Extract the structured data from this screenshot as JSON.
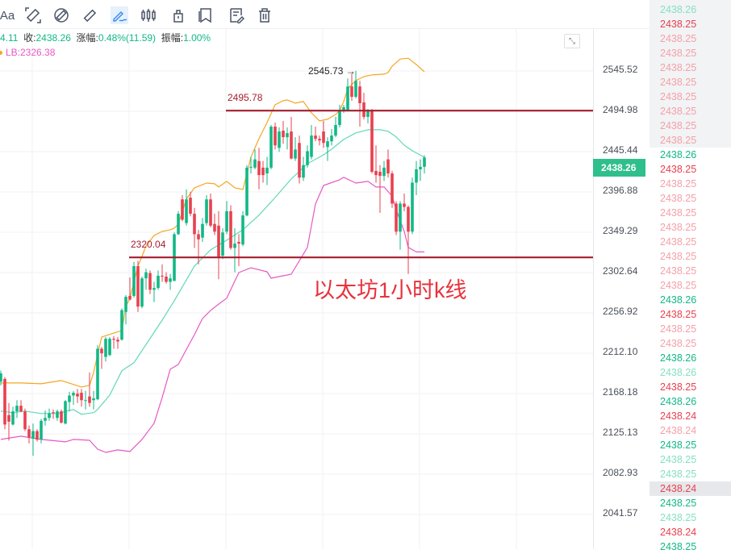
{
  "toolbar": {
    "items": [
      {
        "name": "text-tool-icon",
        "label": "Aa"
      },
      {
        "name": "ruler-icon"
      },
      {
        "name": "circle-ruler-icon"
      },
      {
        "name": "measure-icon"
      },
      {
        "name": "pen-brush-icon",
        "active": true
      },
      {
        "name": "candlestick-icon"
      },
      {
        "name": "lock-icon"
      },
      {
        "name": "bookmark-icon"
      },
      {
        "name": "edit-note-icon"
      },
      {
        "name": "trash-icon"
      }
    ]
  },
  "info": {
    "prev_value": "4.11",
    "close_label": "收:",
    "close": "2438.26",
    "change_label": "涨幅:",
    "change": "0.48%(11.59)",
    "amplitude_label": "振幅:",
    "amplitude": "1.00%",
    "lb": "LB:2326.38"
  },
  "colors": {
    "up": "#12b886",
    "down": "#e8414f",
    "upper_band": "#f5a623",
    "mid_band": "#5fd9b8",
    "lower_band": "#e659c4",
    "hline": "#a51d2d",
    "annotation": "#e8323c",
    "price_tag": "#2fbf8c"
  },
  "price_tag": "2438.26",
  "order_list": [
    {
      "v": "2438.26",
      "c": "lg"
    },
    {
      "v": "2438.25",
      "c": "r"
    },
    {
      "v": "2438.25",
      "c": "lr"
    },
    {
      "v": "2438.25",
      "c": "lr"
    },
    {
      "v": "2438.25",
      "c": "lr"
    },
    {
      "v": "2438.25",
      "c": "lr"
    },
    {
      "v": "2438.25",
      "c": "lr"
    },
    {
      "v": "2438.25",
      "c": "lr"
    },
    {
      "v": "2438.25",
      "c": "lr"
    },
    {
      "v": "2438.25",
      "c": "lr"
    },
    {
      "v": "2438.26",
      "c": "g"
    },
    {
      "v": "2438.25",
      "c": "r"
    },
    {
      "v": "2438.25",
      "c": "lr"
    },
    {
      "v": "2438.25",
      "c": "lr"
    },
    {
      "v": "2438.25",
      "c": "lr"
    },
    {
      "v": "2438.25",
      "c": "lr"
    },
    {
      "v": "2438.25",
      "c": "lr"
    },
    {
      "v": "2438.25",
      "c": "lr"
    },
    {
      "v": "2438.25",
      "c": "lr"
    },
    {
      "v": "2438.25",
      "c": "lr"
    },
    {
      "v": "2438.26",
      "c": "g"
    },
    {
      "v": "2438.25",
      "c": "r"
    },
    {
      "v": "2438.25",
      "c": "lr"
    },
    {
      "v": "2438.25",
      "c": "lr"
    },
    {
      "v": "2438.26",
      "c": "g"
    },
    {
      "v": "2438.26",
      "c": "lg"
    },
    {
      "v": "2438.25",
      "c": "r"
    },
    {
      "v": "2438.26",
      "c": "g"
    },
    {
      "v": "2438.24",
      "c": "r"
    },
    {
      "v": "2438.24",
      "c": "lr"
    },
    {
      "v": "2438.25",
      "c": "g"
    },
    {
      "v": "2438.25",
      "c": "lg"
    },
    {
      "v": "2438.25",
      "c": "lg"
    },
    {
      "v": "2438.24",
      "c": "r",
      "highlight": true
    },
    {
      "v": "2438.25",
      "c": "g"
    },
    {
      "v": "2438.25",
      "c": "lg"
    },
    {
      "v": "2438.24",
      "c": "r"
    },
    {
      "v": "2438.25",
      "c": "g"
    }
  ],
  "chart_data": {
    "type": "candlestick",
    "title": "",
    "annotation": "以太坊1小时k线",
    "y_scale": "log",
    "ylim": [
      2000,
      2600
    ],
    "y_ticks": [
      "2545.52",
      "2494.98",
      "2445.44",
      "2396.88",
      "2349.29",
      "2302.64",
      "2256.92",
      "2212.10",
      "2168.18",
      "2125.13",
      "2082.93",
      "2041.57"
    ],
    "grid": true,
    "high_marker": "2545.73",
    "hlines": [
      {
        "value": 2495.78,
        "label": "2495.78",
        "from_index": 56
      },
      {
        "value": 2320.04,
        "label": "2320.04",
        "from_index": 32
      }
    ],
    "ohlc": [
      [
        2181,
        2193,
        2177,
        2190
      ],
      [
        2184,
        2186,
        2130,
        2135
      ],
      [
        2145,
        2158,
        2118,
        2138
      ],
      [
        2135,
        2154,
        2134,
        2149
      ],
      [
        2149,
        2161,
        2142,
        2155
      ],
      [
        2155,
        2161,
        2148,
        2149
      ],
      [
        2149,
        2152,
        2128,
        2130
      ],
      [
        2130,
        2134,
        2115,
        2121
      ],
      [
        2120,
        2136,
        2102,
        2128
      ],
      [
        2128,
        2130,
        2117,
        2119
      ],
      [
        2119,
        2141,
        2115,
        2139
      ],
      [
        2139,
        2150,
        2134,
        2142
      ],
      [
        2142,
        2152,
        2139,
        2147
      ],
      [
        2148,
        2151,
        2141,
        2147
      ],
      [
        2142,
        2151,
        2139,
        2149
      ],
      [
        2149,
        2151,
        2136,
        2137
      ],
      [
        2136,
        2161,
        2135,
        2160
      ],
      [
        2159,
        2170,
        2149,
        2166
      ],
      [
        2166,
        2171,
        2156,
        2169
      ],
      [
        2168,
        2173,
        2158,
        2165
      ],
      [
        2169,
        2173,
        2154,
        2161
      ],
      [
        2161,
        2171,
        2151,
        2161
      ],
      [
        2165,
        2191,
        2154,
        2158
      ],
      [
        2161,
        2171,
        2151,
        2163
      ],
      [
        2162,
        2221,
        2161,
        2217
      ],
      [
        2217,
        2219,
        2195,
        2212
      ],
      [
        2208,
        2230,
        2203,
        2228
      ],
      [
        2210,
        2230,
        2209,
        2228
      ],
      [
        2228,
        2231,
        2217,
        2227
      ],
      [
        2227,
        2230,
        2217,
        2225
      ],
      [
        2227,
        2262,
        2226,
        2260
      ],
      [
        2258,
        2277,
        2244,
        2275
      ],
      [
        2276,
        2297,
        2271,
        2272
      ],
      [
        2276,
        2315,
        2274,
        2310
      ],
      [
        2310,
        2316,
        2258,
        2264
      ],
      [
        2264,
        2298,
        2262,
        2296
      ],
      [
        2296,
        2307,
        2283,
        2303
      ],
      [
        2302,
        2305,
        2278,
        2283
      ],
      [
        2283,
        2292,
        2269,
        2285
      ],
      [
        2285,
        2305,
        2283,
        2299
      ],
      [
        2299,
        2312,
        2292,
        2298
      ],
      [
        2298,
        2303,
        2290,
        2292
      ],
      [
        2292,
        2301,
        2283,
        2296
      ],
      [
        2293,
        2349,
        2293,
        2347
      ],
      [
        2347,
        2374,
        2346,
        2371
      ],
      [
        2388,
        2393,
        2362,
        2364
      ],
      [
        2360,
        2400,
        2357,
        2388
      ],
      [
        2390,
        2397,
        2368,
        2371
      ],
      [
        2371,
        2378,
        2331,
        2347
      ],
      [
        2347,
        2352,
        2312,
        2341
      ],
      [
        2343,
        2366,
        2338,
        2359
      ],
      [
        2360,
        2393,
        2357,
        2388
      ],
      [
        2388,
        2395,
        2355,
        2357
      ],
      [
        2359,
        2371,
        2346,
        2350
      ],
      [
        2357,
        2374,
        2295,
        2321
      ],
      [
        2322,
        2354,
        2318,
        2349
      ],
      [
        2350,
        2386,
        2347,
        2374
      ],
      [
        2374,
        2381,
        2329,
        2331
      ],
      [
        2331,
        2354,
        2303,
        2336
      ],
      [
        2338,
        2347,
        2310,
        2336
      ],
      [
        2335,
        2374,
        2333,
        2369
      ],
      [
        2369,
        2429,
        2368,
        2426
      ],
      [
        2426,
        2439,
        2419,
        2427
      ],
      [
        2426,
        2448,
        2424,
        2436
      ],
      [
        2434,
        2450,
        2400,
        2417
      ],
      [
        2426,
        2434,
        2408,
        2417
      ],
      [
        2419,
        2439,
        2405,
        2426
      ],
      [
        2426,
        2478,
        2424,
        2476
      ],
      [
        2476,
        2481,
        2448,
        2453
      ],
      [
        2450,
        2475,
        2445,
        2470
      ],
      [
        2471,
        2483,
        2455,
        2463
      ],
      [
        2463,
        2475,
        2448,
        2468
      ],
      [
        2470,
        2488,
        2436,
        2437
      ],
      [
        2437,
        2463,
        2434,
        2448
      ],
      [
        2456,
        2465,
        2407,
        2414
      ],
      [
        2414,
        2439,
        2410,
        2429
      ],
      [
        2429,
        2453,
        2426,
        2446
      ],
      [
        2439,
        2478,
        2436,
        2465
      ],
      [
        2465,
        2476,
        2458,
        2461
      ],
      [
        2461,
        2465,
        2453,
        2459
      ],
      [
        2470,
        2483,
        2450,
        2456
      ],
      [
        2451,
        2463,
        2434,
        2458
      ],
      [
        2458,
        2473,
        2453,
        2465
      ],
      [
        2465,
        2488,
        2463,
        2478
      ],
      [
        2478,
        2503,
        2475,
        2496
      ],
      [
        2496,
        2503,
        2493,
        2500
      ],
      [
        2496,
        2536,
        2495,
        2526
      ],
      [
        2526,
        2542,
        2508,
        2513
      ],
      [
        2513,
        2545.73,
        2511,
        2533
      ],
      [
        2526,
        2533,
        2476,
        2505
      ],
      [
        2506,
        2518,
        2485,
        2488
      ],
      [
        2488,
        2498,
        2480,
        2496
      ],
      [
        2496,
        2498,
        2419,
        2421
      ],
      [
        2422,
        2453,
        2408,
        2417
      ],
      [
        2421,
        2429,
        2372,
        2416
      ],
      [
        2416,
        2434,
        2410,
        2426
      ],
      [
        2436,
        2448,
        2414,
        2419
      ],
      [
        2419,
        2422,
        2378,
        2383
      ],
      [
        2383,
        2386,
        2346,
        2350
      ],
      [
        2350,
        2386,
        2329,
        2383
      ],
      [
        2383,
        2395,
        2374,
        2379
      ],
      [
        2379,
        2381,
        2301,
        2350
      ],
      [
        2350,
        2414,
        2347,
        2408
      ],
      [
        2408,
        2434,
        2393,
        2424
      ],
      [
        2424,
        2436,
        2410,
        2427
      ],
      [
        2427,
        2441,
        2419,
        2438.26
      ]
    ],
    "bands": {
      "upper": [
        [
          0,
          2179.6
        ],
        [
          5,
          2179.6
        ],
        [
          10,
          2178.7
        ],
        [
          15,
          2182.2
        ],
        [
          20,
          2175.2
        ],
        [
          22,
          2177.0
        ],
        [
          23,
          2191.0
        ],
        [
          25,
          2230.0
        ],
        [
          30,
          2237.2
        ],
        [
          31,
          2264.2
        ],
        [
          32,
          2273.4
        ],
        [
          34,
          2310.1
        ],
        [
          35,
          2321.3
        ],
        [
          36,
          2333.4
        ],
        [
          38,
          2345.6
        ],
        [
          40,
          2350.2
        ],
        [
          42,
          2352.2
        ],
        [
          43,
          2354.1
        ],
        [
          44,
          2358.8
        ],
        [
          46,
          2388.3
        ],
        [
          48,
          2401.8
        ],
        [
          51,
          2407.5
        ],
        [
          53,
          2406.6
        ],
        [
          54,
          2402.7
        ],
        [
          56,
          2409.5
        ],
        [
          58,
          2401.8
        ],
        [
          60,
          2399.8
        ],
        [
          62,
          2438.6
        ],
        [
          64,
          2461.3
        ],
        [
          66,
          2481.1
        ],
        [
          68,
          2503.1
        ],
        [
          70,
          2508.1
        ],
        [
          71,
          2509.1
        ],
        [
          73,
          2505.1
        ],
        [
          75,
          2507.1
        ],
        [
          77,
          2493.0
        ],
        [
          79,
          2483.1
        ],
        [
          81,
          2485.1
        ],
        [
          83,
          2491.0
        ],
        [
          84,
          2496.0
        ],
        [
          85,
          2507.1
        ],
        [
          86,
          2523.3
        ],
        [
          88,
          2533.4
        ],
        [
          90,
          2538.4
        ],
        [
          92,
          2540.5
        ],
        [
          95,
          2541.5
        ],
        [
          96,
          2543.5
        ],
        [
          97,
          2551.6
        ],
        [
          99,
          2560.7
        ],
        [
          101,
          2561.7
        ],
        [
          103,
          2553.6
        ],
        [
          105,
          2544.5
        ]
      ],
      "middle": [
        [
          0,
          2149.3
        ],
        [
          3,
          2147.6
        ],
        [
          6,
          2149.3
        ],
        [
          10,
          2146.7
        ],
        [
          14,
          2146.7
        ],
        [
          18,
          2151.0
        ],
        [
          20,
          2145.8
        ],
        [
          23,
          2147.6
        ],
        [
          24,
          2151.0
        ],
        [
          27,
          2166.4
        ],
        [
          30,
          2192.8
        ],
        [
          33,
          2201.6
        ],
        [
          40,
          2248.8
        ],
        [
          43,
          2270.6
        ],
        [
          48,
          2310.1
        ],
        [
          52,
          2328.8
        ],
        [
          56,
          2340.0
        ],
        [
          60,
          2352.2
        ],
        [
          64,
          2369.3
        ],
        [
          68,
          2390.2
        ],
        [
          72,
          2412.4
        ],
        [
          76,
          2430.8
        ],
        [
          80,
          2441.5
        ],
        [
          82,
          2448.4
        ],
        [
          85,
          2460.3
        ],
        [
          88,
          2468.3
        ],
        [
          91,
          2472.2
        ],
        [
          94,
          2472.2
        ],
        [
          96,
          2470.3
        ],
        [
          98,
          2463.3
        ],
        [
          100,
          2453.3
        ],
        [
          102,
          2446.4
        ],
        [
          105,
          2438.6
        ]
      ],
      "lower": [
        [
          0,
          2119.2
        ],
        [
          5,
          2122.6
        ],
        [
          10,
          2119.2
        ],
        [
          16,
          2116.7
        ],
        [
          18,
          2119.2
        ],
        [
          22,
          2118.3
        ],
        [
          24,
          2109.0
        ],
        [
          26,
          2105.6
        ],
        [
          29,
          2108.2
        ],
        [
          32,
          2106.5
        ],
        [
          35,
          2119.2
        ],
        [
          38,
          2136.4
        ],
        [
          40,
          2163.9
        ],
        [
          42,
          2194.5
        ],
        [
          44,
          2199.8
        ],
        [
          48,
          2232.7
        ],
        [
          50,
          2250.6
        ],
        [
          52,
          2259.6
        ],
        [
          54,
          2266.8
        ],
        [
          56,
          2273.4
        ],
        [
          59,
          2302.6
        ],
        [
          62,
          2308.1
        ],
        [
          66,
          2303.5
        ],
        [
          67,
          2296.2
        ],
        [
          72,
          2300.8
        ],
        [
          76,
          2331.6
        ],
        [
          78,
          2382.6
        ],
        [
          80,
          2404.6
        ],
        [
          84,
          2411.4
        ],
        [
          85,
          2414.3
        ],
        [
          88,
          2407.5
        ],
        [
          91,
          2409.5
        ],
        [
          93,
          2402.7
        ],
        [
          95,
          2402.7
        ],
        [
          97,
          2392.0
        ],
        [
          98,
          2375.9
        ],
        [
          100,
          2350.2
        ],
        [
          101,
          2331.6
        ],
        [
          103,
          2326.38
        ],
        [
          105,
          2326.38
        ]
      ]
    }
  }
}
